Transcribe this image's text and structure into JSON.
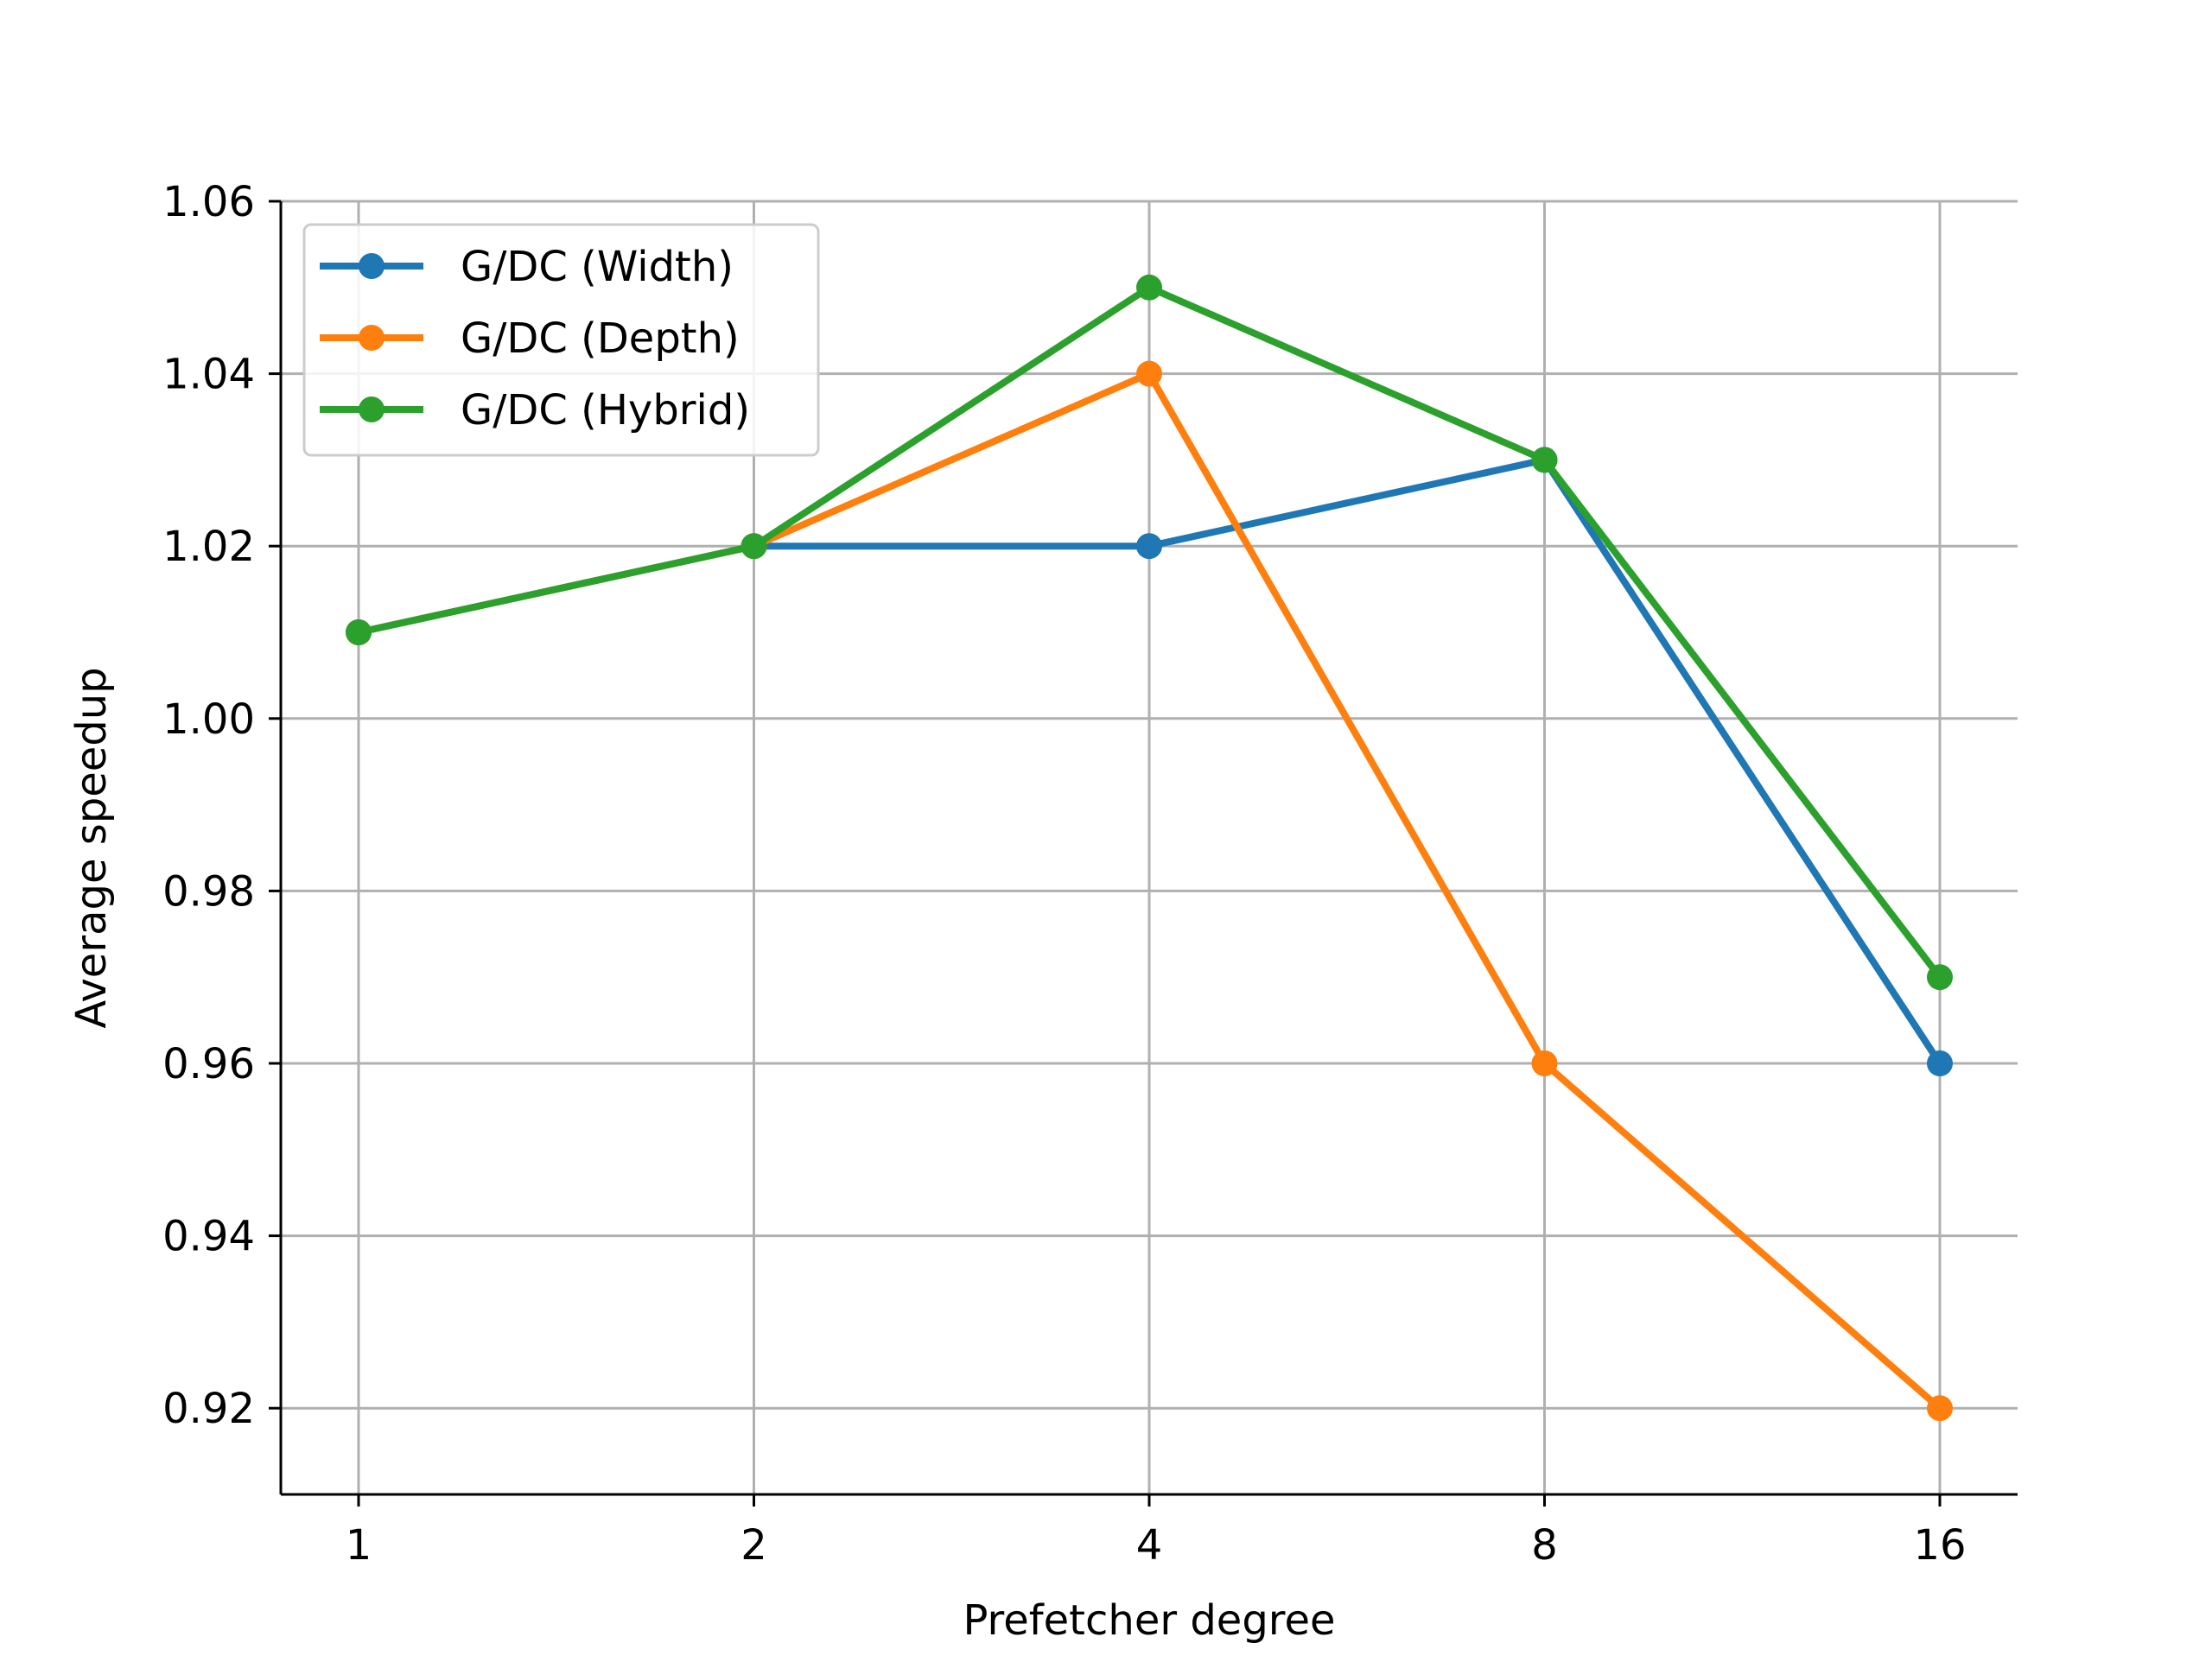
{
  "chart_data": {
    "type": "line",
    "xlabel": "Prefetcher degree",
    "ylabel": "Average speedup",
    "categories": [
      "1",
      "2",
      "4",
      "8",
      "16"
    ],
    "ylim": [
      0.91,
      1.06
    ],
    "yticks": [
      "0.92",
      "0.94",
      "0.96",
      "0.98",
      "1.00",
      "1.02",
      "1.04",
      "1.06"
    ],
    "grid": true,
    "legend_position": "top-left",
    "series": [
      {
        "name": "G/DC (Width)",
        "color": "#1f77b4",
        "values": [
          1.01,
          1.02,
          1.02,
          1.03,
          0.96
        ]
      },
      {
        "name": "G/DC (Depth)",
        "color": "#ff7f0e",
        "values": [
          1.01,
          1.02,
          1.04,
          0.96,
          0.92
        ]
      },
      {
        "name": "G/DC (Hybrid)",
        "color": "#2ca02c",
        "values": [
          1.01,
          1.02,
          1.05,
          1.03,
          0.97
        ]
      }
    ]
  }
}
